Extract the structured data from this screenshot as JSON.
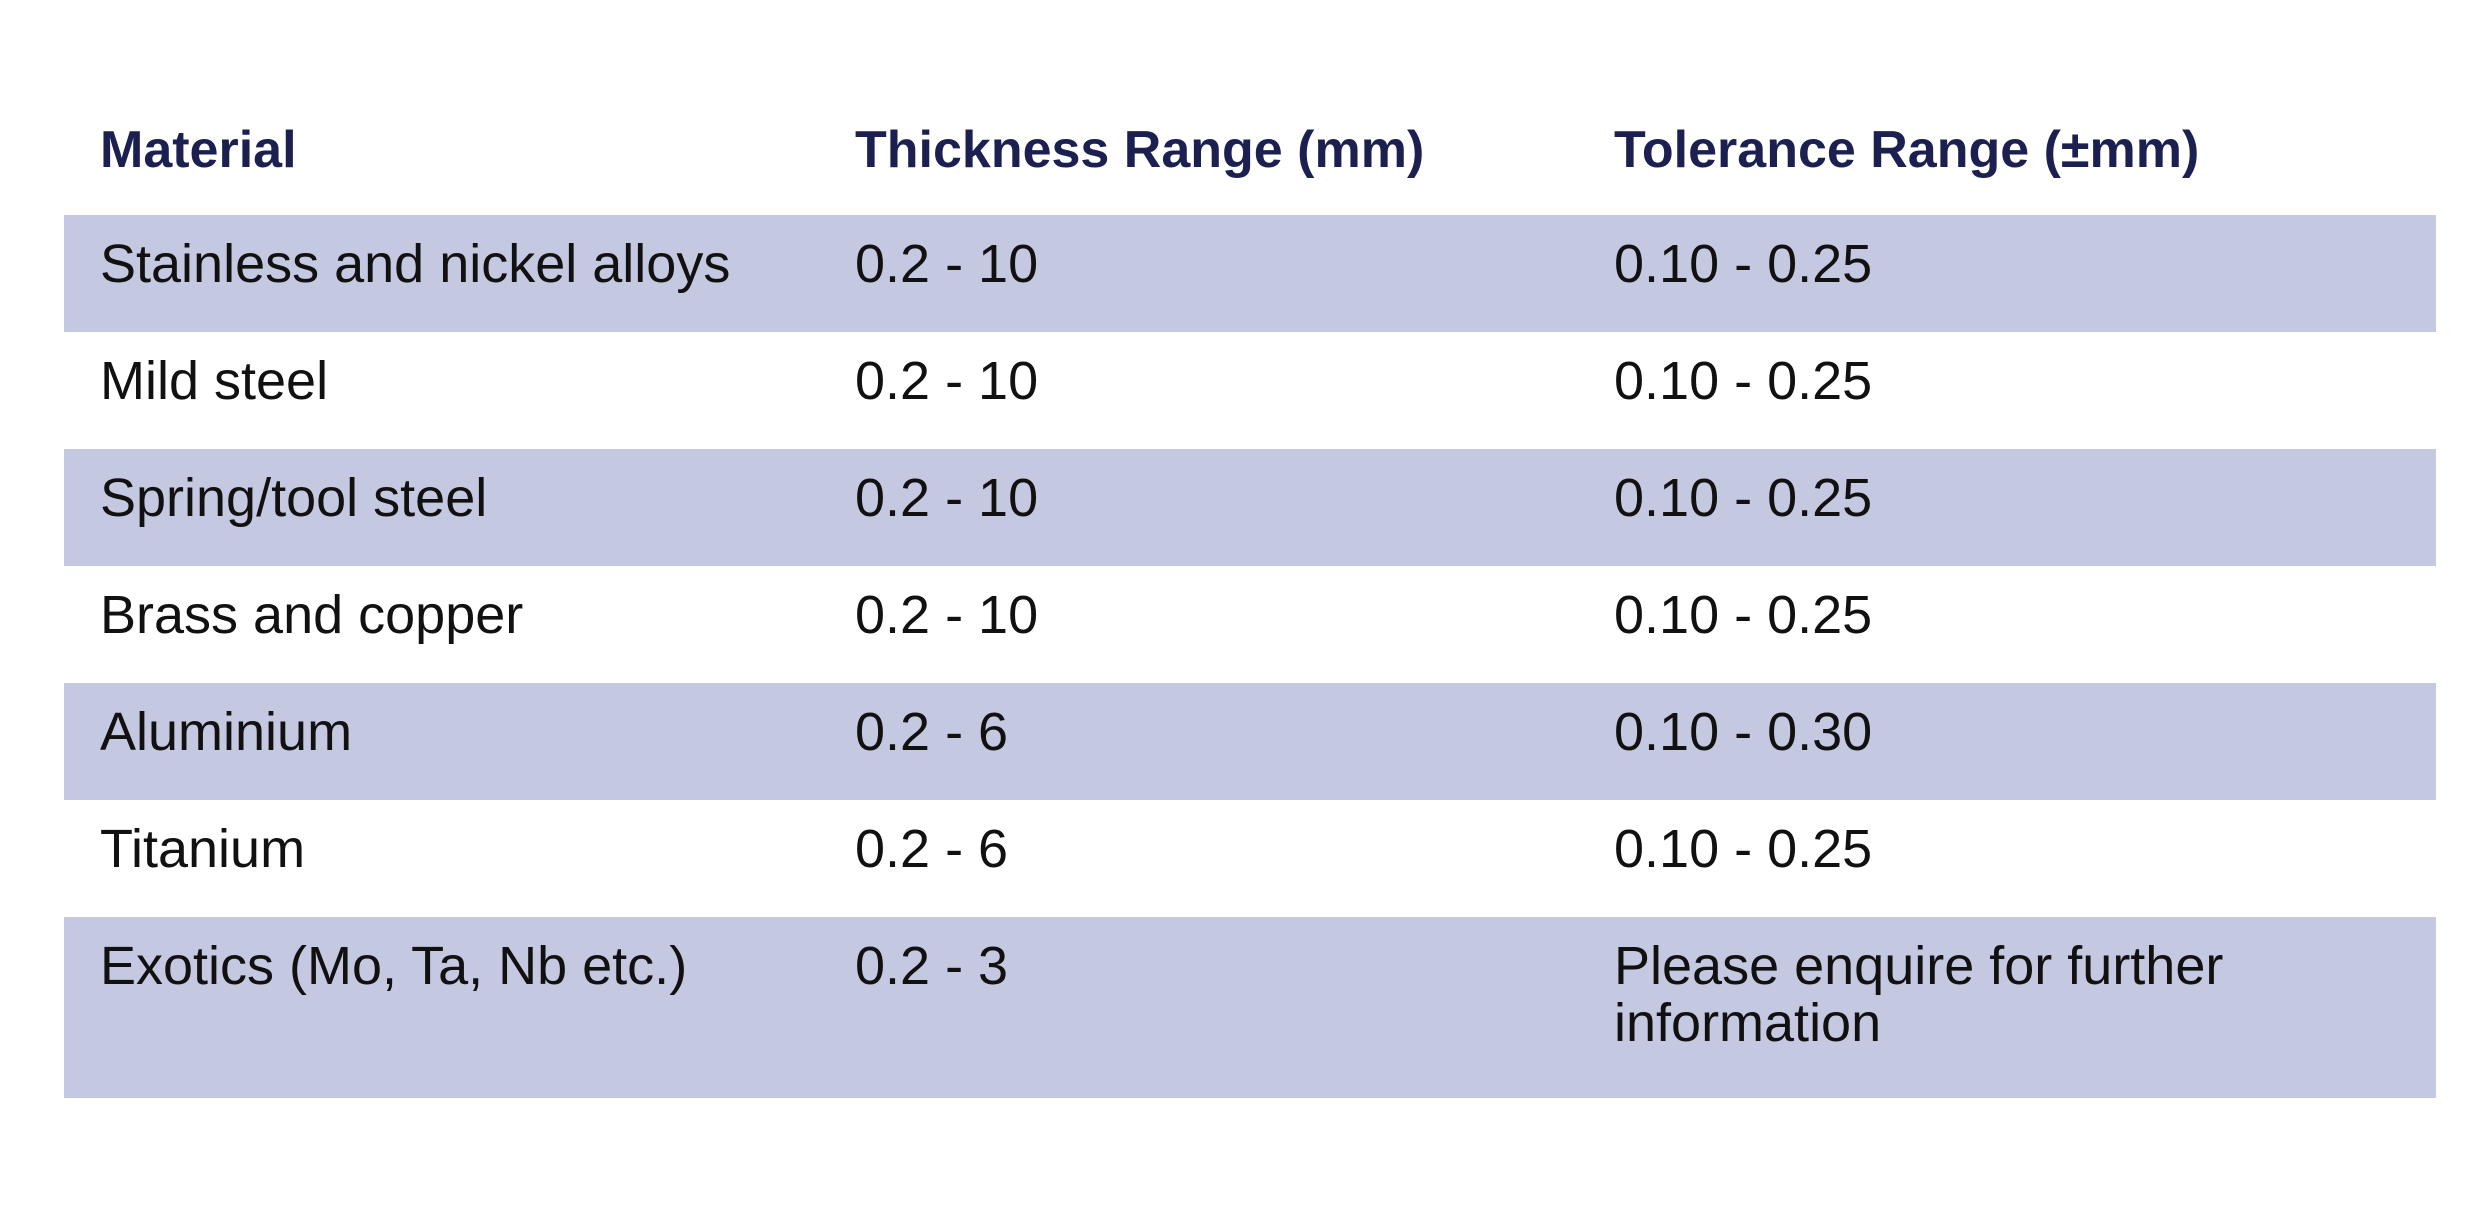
{
  "table": {
    "headers": {
      "material": "Material",
      "thickness": "Thickness Range (mm)",
      "tolerance": "Tolerance Range (±mm)"
    },
    "rows": [
      {
        "material": "Stainless and nickel alloys",
        "thickness": "0.2 - 10",
        "tolerance": "0.10 - 0.25"
      },
      {
        "material": "Mild steel",
        "thickness": "0.2 - 10",
        "tolerance": "0.10 - 0.25"
      },
      {
        "material": "Spring/tool steel",
        "thickness": "0.2 - 10",
        "tolerance": "0.10 - 0.25"
      },
      {
        "material": "Brass and copper",
        "thickness": "0.2 - 10",
        "tolerance": "0.10 - 0.25"
      },
      {
        "material": "Aluminium",
        "thickness": "0.2 - 6",
        "tolerance": "0.10 - 0.30"
      },
      {
        "material": "Titanium",
        "thickness": "0.2 - 6",
        "tolerance": "0.10 - 0.25"
      },
      {
        "material": "Exotics (Mo, Ta, Nb etc.)",
        "thickness": "0.2 - 3",
        "tolerance": "Please enquire for further information"
      }
    ]
  },
  "colors": {
    "header_text": "#1b2050",
    "row_shade": "#c5c8e1",
    "body_text": "#111111"
  }
}
